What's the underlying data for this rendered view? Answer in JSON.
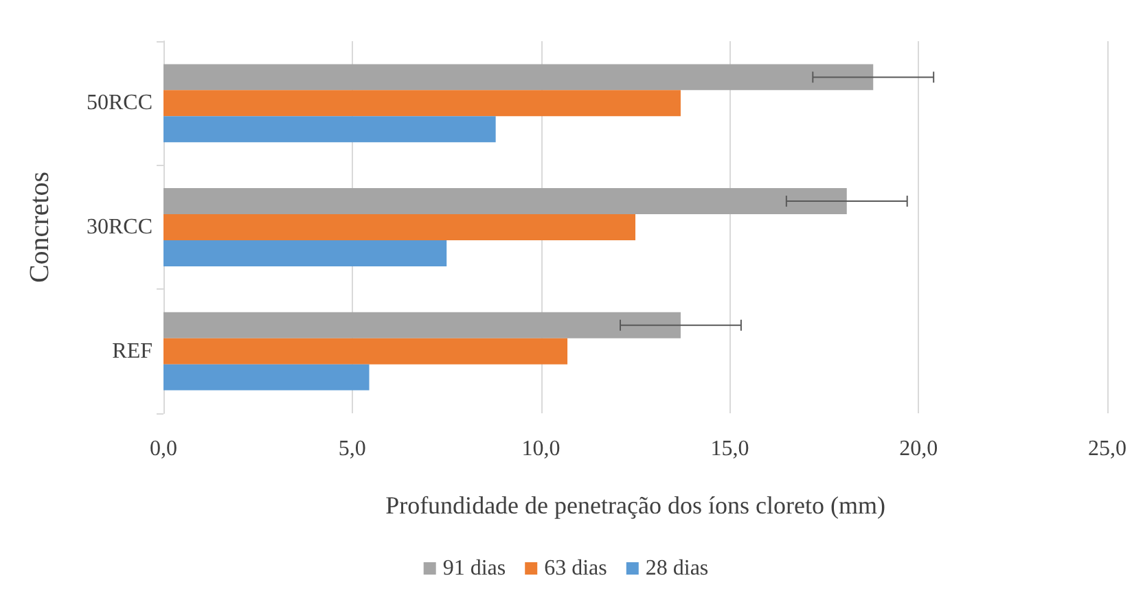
{
  "chart_data": {
    "type": "bar",
    "orientation": "horizontal",
    "xlabel": "Profundidade de penetração dos íons cloreto (mm)",
    "ylabel": "Concretos",
    "categories": [
      "50RCC",
      "30RCC",
      "REF"
    ],
    "series": [
      {
        "name": "91 dias",
        "color": "#a5a5a5",
        "values": [
          18.8,
          18.1,
          13.7
        ],
        "errors": [
          1.6,
          1.6,
          1.6
        ]
      },
      {
        "name": "63 dias",
        "color": "#ed7d31",
        "values": [
          13.7,
          12.5,
          10.7
        ]
      },
      {
        "name": "28 dias",
        "color": "#5b9bd5",
        "values": [
          8.8,
          7.5,
          5.45
        ]
      }
    ],
    "xlim": [
      0,
      25
    ],
    "xticks": [
      {
        "value": 0,
        "label": "0,0"
      },
      {
        "value": 5,
        "label": "5,0"
      },
      {
        "value": 10,
        "label": "10,0"
      },
      {
        "value": 15,
        "label": "15,0"
      },
      {
        "value": 20,
        "label": "20,0"
      },
      {
        "value": 25,
        "label": "25,0"
      }
    ],
    "grid": "x",
    "legend": "bottom"
  }
}
